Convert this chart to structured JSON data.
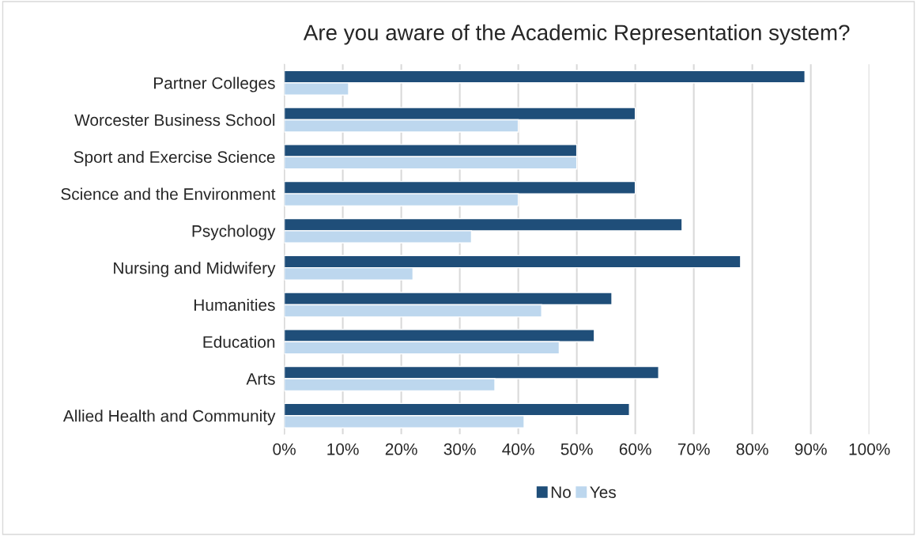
{
  "chart_data": {
    "type": "bar",
    "orientation": "horizontal",
    "title": "Are you aware of the Academic Representation system?",
    "categories": [
      "Partner Colleges",
      "Worcester Business School",
      "Sport and Exercise Science",
      "Science and the Environment",
      "Psychology",
      "Nursing and Midwifery",
      "Humanities",
      "Education",
      "Arts",
      "Allied Health and Community"
    ],
    "series": [
      {
        "name": "No",
        "color": "#1f4e79",
        "values": [
          89,
          60,
          50,
          60,
          68,
          78,
          56,
          53,
          64,
          59
        ]
      },
      {
        "name": "Yes",
        "color": "#bdd7ee",
        "values": [
          11,
          40,
          50,
          40,
          32,
          22,
          44,
          47,
          36,
          41
        ]
      }
    ],
    "xlim": [
      0,
      100
    ],
    "xticks": [
      {
        "value": 0,
        "label": "0%"
      },
      {
        "value": 10,
        "label": "10%"
      },
      {
        "value": 20,
        "label": "20%"
      },
      {
        "value": 30,
        "label": "30%"
      },
      {
        "value": 40,
        "label": "40%"
      },
      {
        "value": 50,
        "label": "50%"
      },
      {
        "value": 60,
        "label": "60%"
      },
      {
        "value": 70,
        "label": "70%"
      },
      {
        "value": 80,
        "label": "80%"
      },
      {
        "value": 90,
        "label": "90%"
      },
      {
        "value": 100,
        "label": "100%"
      }
    ],
    "grid": "x",
    "legend": "bottom"
  }
}
